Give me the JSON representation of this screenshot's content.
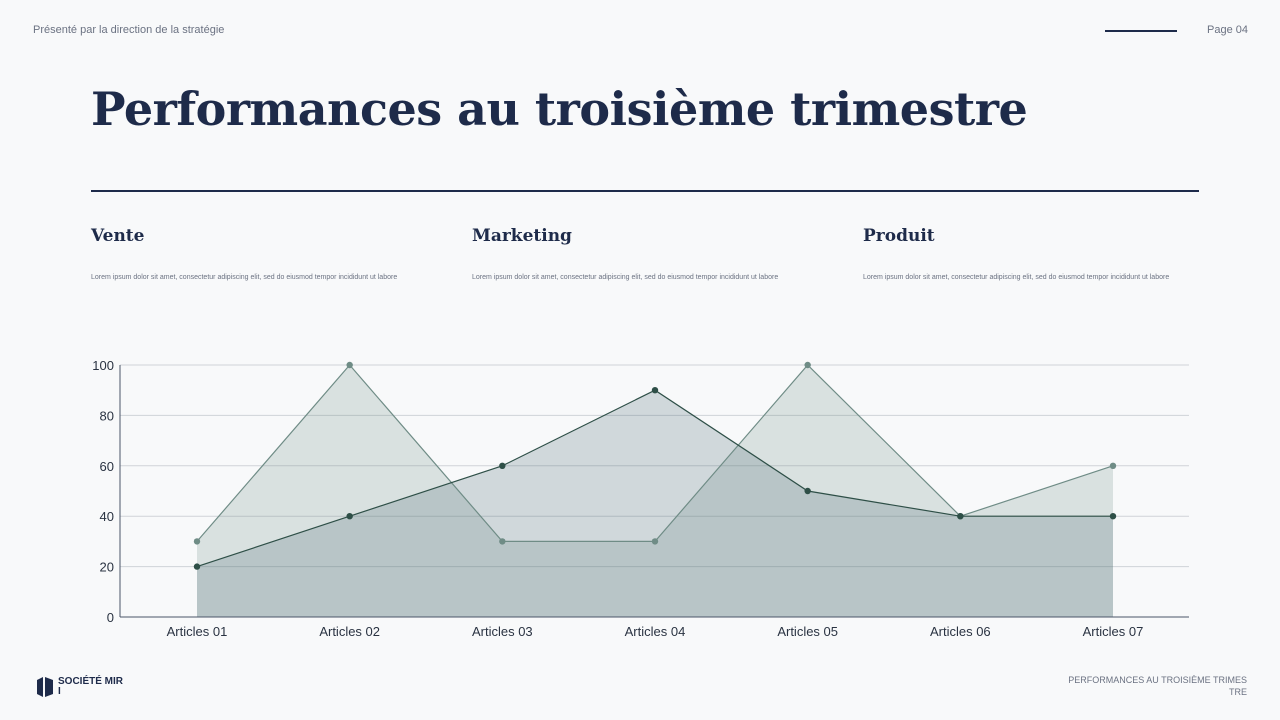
{
  "header": {
    "presented_by": "Présenté par la direction de la stratégie",
    "page": "Page 04"
  },
  "title": "Performances au troisième trimestre",
  "columns": [
    {
      "heading": "Vente",
      "text": "Lorem ipsum dolor sit amet, consectetur adipiscing elit, sed do eiusmod tempor incididunt ut labore"
    },
    {
      "heading": "Marketing",
      "text": "Lorem ipsum dolor sit amet, consectetur adipiscing elit, sed do eiusmod tempor incididunt ut labore"
    },
    {
      "heading": "Produit",
      "text": "Lorem ipsum dolor sit amet, consectetur adipiscing elit, sed do eiusmod tempor incididunt ut labore"
    }
  ],
  "footer": {
    "company": "SOCIÉTÉ MIRI",
    "caption": "PERFORMANCES AU TROISIÈME TRIMESTRE"
  },
  "chart_data": {
    "type": "area",
    "categories": [
      "Articles 01",
      "Articles 02",
      "Articles 03",
      "Articles 04",
      "Articles 05",
      "Articles 06",
      "Articles 07"
    ],
    "series": [
      {
        "values": [
          30,
          100,
          30,
          30,
          100,
          40,
          60
        ],
        "color": "#6f8c86"
      },
      {
        "values": [
          20,
          40,
          60,
          90,
          50,
          40,
          40
        ],
        "color": "#2e4f47"
      }
    ],
    "ylim": [
      0,
      100
    ],
    "yticks": [
      0,
      20,
      40,
      60,
      80,
      100
    ],
    "grid": true,
    "legend": "none"
  }
}
